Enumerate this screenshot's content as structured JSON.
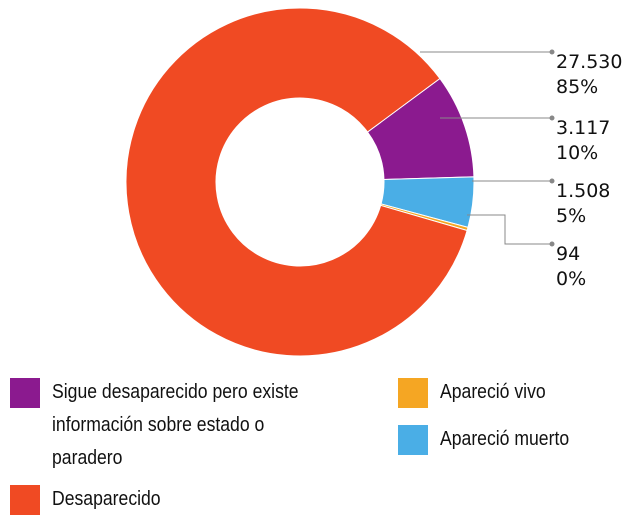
{
  "chart_data": {
    "type": "donut",
    "categories": [
      "Sigue desaparecido pero existe información sobre estado o paradero",
      "Desaparecido",
      "Apareció vivo",
      "Apareció muerto"
    ],
    "values": [
      3117,
      27530,
      94,
      1508
    ],
    "value_labels": [
      "3.117",
      "27.530",
      "94",
      "1.508"
    ],
    "percent_labels": [
      "10%",
      "85%",
      "0%",
      "5%"
    ],
    "colors": [
      "#8b1a8f",
      "#f04a23",
      "#f5a623",
      "#4aaee6"
    ],
    "legend": "bottom"
  }
}
